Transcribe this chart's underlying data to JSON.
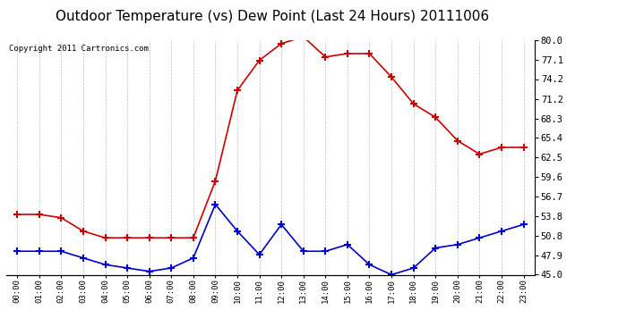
{
  "title": "Outdoor Temperature (vs) Dew Point (Last 24 Hours) 20111006",
  "copyright": "Copyright 2011 Cartronics.com",
  "x_labels": [
    "00:00",
    "01:00",
    "02:00",
    "03:00",
    "04:00",
    "05:00",
    "06:00",
    "07:00",
    "08:00",
    "09:00",
    "10:00",
    "11:00",
    "12:00",
    "13:00",
    "14:00",
    "15:00",
    "16:00",
    "17:00",
    "18:00",
    "19:00",
    "20:00",
    "21:00",
    "22:00",
    "23:00"
  ],
  "temp_red": [
    54.0,
    54.0,
    53.5,
    51.5,
    50.5,
    50.5,
    50.5,
    50.5,
    50.5,
    59.0,
    72.5,
    77.0,
    79.5,
    80.5,
    77.5,
    78.0,
    78.0,
    74.5,
    70.5,
    68.5,
    65.0,
    63.0,
    64.0,
    64.0
  ],
  "dew_blue": [
    48.5,
    48.5,
    48.5,
    47.5,
    46.5,
    46.0,
    45.5,
    46.0,
    47.5,
    55.5,
    51.5,
    48.0,
    52.5,
    48.5,
    48.5,
    49.5,
    46.5,
    45.0,
    46.0,
    49.0,
    49.5,
    50.5,
    51.5,
    52.5
  ],
  "y_min": 45.0,
  "y_max": 80.0,
  "y_ticks": [
    45.0,
    47.9,
    50.8,
    53.8,
    56.7,
    59.6,
    62.5,
    65.4,
    68.3,
    71.2,
    74.2,
    77.1,
    80.0
  ],
  "bg_color": "#ffffff",
  "plot_bg_color": "#ffffff",
  "grid_color": "#c0c0c0",
  "red_color": "#cc0000",
  "blue_color": "#0000cc",
  "title_fontsize": 11,
  "copyright_fontsize": 6.5
}
